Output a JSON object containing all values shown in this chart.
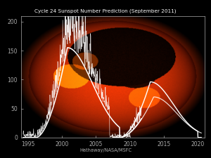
{
  "title": "Cycle 24 Sunspot Number Prediction (September 2011)",
  "xlabel_ticks": [
    1995,
    2000,
    2005,
    2010,
    2015,
    2020
  ],
  "ylabel_ticks": [
    0,
    50,
    100,
    150,
    200
  ],
  "ylim": [
    0,
    210
  ],
  "xlim": [
    1994,
    2021
  ],
  "credit": "Hathaway/NASA/MSFC",
  "title_color": "#ffffff",
  "axis_color": "#aaaaaa",
  "tick_color": "#aaaaaa",
  "credit_color": "#aaaaaa",
  "background_color": "#000000"
}
